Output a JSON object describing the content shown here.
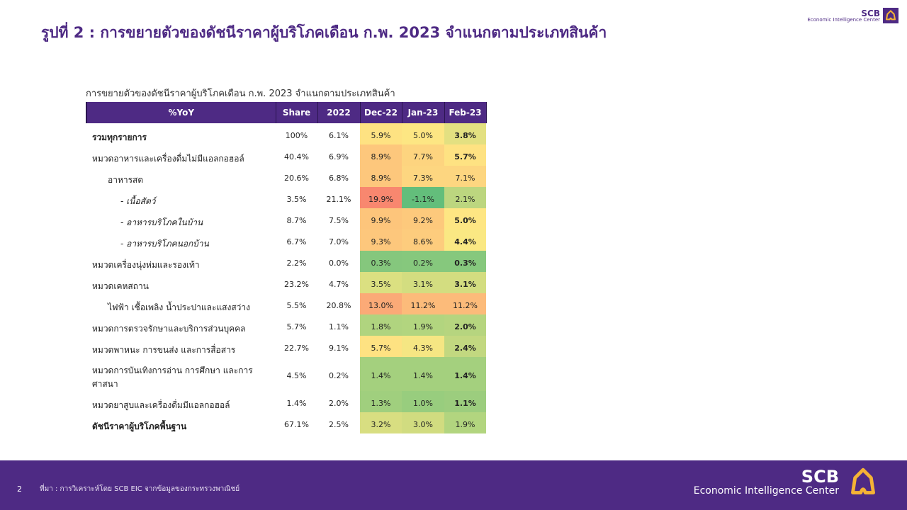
{
  "title": "รูปที่ 2 : การขยายตัวของดัชนีราคาผู้บริโภคเดือน ก.พ. 2023 จำแนกตามประเภทสินค้า",
  "logo": {
    "brand": "SCB",
    "subtitle": "Economic Intelligence Center"
  },
  "table": {
    "caption": "การขยายตัวของดัชนีราคาผู้บริโภคเดือน  ก.พ. 2023 จำแนกตามประเภทสินค้า",
    "header_color": "#4e2a84",
    "columns": [
      "%YoY",
      "Share",
      "2022",
      "Dec-22",
      "Jan-23",
      "Feb-23"
    ],
    "rows": [
      {
        "label": "รวมทุกรายการ",
        "level": 0,
        "bold": true,
        "values": [
          "100%",
          "6.1%",
          "5.9%",
          "5.0%",
          "3.8%"
        ],
        "colors": [
          "#fee282",
          "#fde683",
          "#e3e081"
        ],
        "feb_bold": true
      },
      {
        "label": "หมวดอาหารและเครื่องดื่มไม่มีแอลกอฮอล์",
        "level": 0,
        "bold": false,
        "values": [
          "40.4%",
          "6.9%",
          "8.9%",
          "7.7%",
          "5.7%"
        ],
        "colors": [
          "#fdc77c",
          "#fdd47f",
          "#fee282"
        ],
        "feb_bold": true
      },
      {
        "label": "อาหารสด",
        "level": 1,
        "bold": false,
        "values": [
          "20.6%",
          "6.8%",
          "8.9%",
          "7.3%",
          "7.1%"
        ],
        "colors": [
          "#fdc77c",
          "#fdd680",
          "#fdd680"
        ],
        "feb_bold": false
      },
      {
        "label": "- เนื้อสัตว์",
        "level": 2,
        "bold": false,
        "values": [
          "3.5%",
          "21.1%",
          "19.9%",
          "-1.1%",
          "2.1%"
        ],
        "colors": [
          "#f8876f",
          "#63be7b",
          "#bcd67f"
        ],
        "feb_bold": false
      },
      {
        "label": "- อาหารบริโภคในบ้าน",
        "level": 2,
        "bold": false,
        "values": [
          "8.7%",
          "7.5%",
          "9.9%",
          "9.2%",
          "5.0%"
        ],
        "colors": [
          "#fdc57b",
          "#fdc97c",
          "#fee683"
        ],
        "feb_bold": true
      },
      {
        "label": "- อาหารบริโภคนอกบ้าน",
        "level": 2,
        "bold": false,
        "values": [
          "6.7%",
          "7.0%",
          "9.3%",
          "8.6%",
          "4.4%"
        ],
        "colors": [
          "#fdc77c",
          "#fdcc7d",
          "#fae883"
        ],
        "feb_bold": true
      },
      {
        "label": "หมวดเครื่องนุ่งห่มและรองเท้า",
        "level": 0,
        "bold": false,
        "values": [
          "2.2%",
          "0.0%",
          "0.3%",
          "0.2%",
          "0.3%"
        ],
        "colors": [
          "#85c77d",
          "#86c87d",
          "#86c87d"
        ],
        "feb_bold": true
      },
      {
        "label": "หมวดเคหสถาน",
        "level": 0,
        "bold": false,
        "values": [
          "23.2%",
          "4.7%",
          "3.5%",
          "3.1%",
          "3.1%"
        ],
        "colors": [
          "#dbe081",
          "#d3dd80",
          "#d3dd80"
        ],
        "feb_bold": true
      },
      {
        "label": "ไฟฟ้า เชื้อเพลิง น้ำประปาและแสงสว่าง",
        "level": 1,
        "bold": false,
        "values": [
          "5.5%",
          "20.8%",
          "13.0%",
          "11.2%",
          "11.2%"
        ],
        "colors": [
          "#fbaa77",
          "#fcbb7a",
          "#fcbb7a"
        ],
        "feb_bold": false
      },
      {
        "label": "หมวดการตรวจรักษาและบริการส่วนบุคคล",
        "level": 0,
        "bold": false,
        "values": [
          "5.7%",
          "1.1%",
          "1.8%",
          "1.9%",
          "2.0%"
        ],
        "colors": [
          "#b0d47f",
          "#b2d57f",
          "#b6d57f"
        ],
        "feb_bold": true
      },
      {
        "label": "หมวดพาหนะ การขนส่ง และการสื่อสาร",
        "level": 0,
        "bold": false,
        "values": [
          "22.7%",
          "9.1%",
          "5.7%",
          "4.3%",
          "2.4%"
        ],
        "colors": [
          "#fee282",
          "#f5e683",
          "#c2d880"
        ],
        "feb_bold": true
      },
      {
        "label": "หมวดการบันเทิงการอ่าน การศึกษา และการศาสนา",
        "level": 0,
        "bold": false,
        "values": [
          "4.5%",
          "0.2%",
          "1.4%",
          "1.4%",
          "1.4%"
        ],
        "colors": [
          "#a4d07e",
          "#a4d07e",
          "#a4d07e"
        ],
        "feb_bold": true
      },
      {
        "label": "หมวดยาสูบและเครื่องดื่มมีแอลกอฮอล์",
        "level": 0,
        "bold": false,
        "values": [
          "1.4%",
          "2.0%",
          "1.3%",
          "1.0%",
          "1.1%"
        ],
        "colors": [
          "#a0cf7e",
          "#98cd7e",
          "#9ccd7e"
        ],
        "feb_bold": true
      },
      {
        "label": "ดัชนีราคาผู้บริโภคพื้นฐาน",
        "level": 0,
        "bold": true,
        "values": [
          "67.1%",
          "2.5%",
          "3.2%",
          "3.0%",
          "1.9%"
        ],
        "colors": [
          "#d8de81",
          "#d1dc80",
          "#b2d57f"
        ],
        "feb_bold": false
      }
    ]
  },
  "footer": {
    "page": "2",
    "source": "ที่มา : การวิเคราะห์โดย SCB EIC จากข้อมูลของกระทรวงพาณิชย์",
    "bg": "#4e2a84",
    "logo_color": "#f5b335"
  }
}
